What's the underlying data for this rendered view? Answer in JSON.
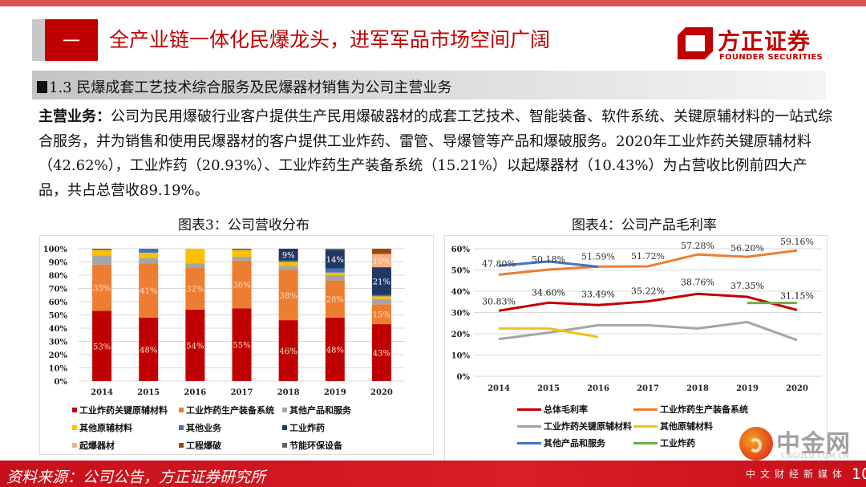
{
  "header": {
    "section_number": "一",
    "title": "全产业链一体化民爆龙头，进军军品市场空间广阔",
    "logo_cn": "方正证券",
    "logo_en": "FOUNDER SECURITIES"
  },
  "section": {
    "heading": "1.3 民爆成套工艺技术综合服务及民爆器材销售为公司主营业务"
  },
  "body": {
    "lead": "主营业务：",
    "text": "公司为民用爆破行业客户提供生产民用爆破器材的成套工艺技术、智能装备、软件系统、关键原辅材料的一站式综合服务，并为销售和使用民爆器材的客户提供工业炸药、雷管、导爆管等产品和爆破服务。2020年工业炸药关键原辅材料（42.62%），工业炸药（20.93%）、工业炸药生产装备系统（15.21%）以起爆器材（10.43%）为占营收比例前四大产品，共占总营收89.19%。"
  },
  "chart_data": [
    {
      "type": "bar",
      "stacked": true,
      "title": "图表3：公司营收分布",
      "categories": [
        "2014",
        "2015",
        "2016",
        "2017",
        "2018",
        "2019",
        "2020"
      ],
      "ylim": [
        0,
        100
      ],
      "yticks": [
        "0%",
        "10%",
        "20%",
        "30%",
        "40%",
        "50%",
        "60%",
        "70%",
        "80%",
        "90%",
        "100%"
      ],
      "legend_position": "bottom",
      "series": [
        {
          "name": "工业炸药关键原辅材料",
          "color": "#c00000",
          "values": [
            53,
            48,
            54,
            55,
            46,
            48,
            43
          ],
          "labels": [
            "53%",
            "48%",
            "54%",
            "55%",
            "46%",
            "48%",
            "43%"
          ]
        },
        {
          "name": "工业炸药生产装备系统",
          "color": "#ed7d31",
          "values": [
            35,
            41,
            32,
            36,
            38,
            28,
            15
          ],
          "labels": [
            "35%",
            "41%",
            "32%",
            "36%",
            "38%",
            "28%",
            "15%"
          ]
        },
        {
          "name": "其他产品和服务",
          "color": "#a5a5a5",
          "values": [
            7,
            4,
            3,
            3,
            3,
            4,
            4
          ],
          "labels": [
            "",
            "",
            "",
            "",
            "",
            "",
            ""
          ]
        },
        {
          "name": "其他原辅材料",
          "color": "#ffc000",
          "values": [
            4,
            4,
            11,
            5,
            3,
            2,
            2
          ],
          "labels": [
            "",
            "",
            "",
            "",
            "",
            "",
            ""
          ]
        },
        {
          "name": "其他业务",
          "color": "#4472c4",
          "values": [
            0,
            3,
            0,
            0,
            1,
            3,
            1
          ],
          "labels": [
            "",
            "",
            "",
            "",
            "",
            "",
            ""
          ]
        },
        {
          "name": "工业炸药",
          "color": "#203864",
          "values": [
            0,
            0,
            0,
            0,
            9,
            14,
            21
          ],
          "labels": [
            "",
            "",
            "",
            "",
            "9%",
            "14%",
            "21%"
          ]
        },
        {
          "name": "起爆器材",
          "color": "#f4b183",
          "values": [
            0,
            0,
            0,
            0,
            0,
            0,
            10
          ],
          "labels": [
            "",
            "",
            "",
            "",
            "",
            "",
            "10%"
          ]
        },
        {
          "name": "工程爆破",
          "color": "#9e480e",
          "values": [
            0,
            0,
            0,
            0,
            0,
            0,
            4
          ],
          "labels": [
            "",
            "",
            "",
            "",
            "",
            "",
            ""
          ]
        },
        {
          "name": "节能环保设备",
          "color": "#636363",
          "values": [
            1,
            0,
            0,
            1,
            0,
            1,
            0
          ],
          "labels": [
            "",
            "",
            "",
            "",
            "",
            "",
            ""
          ]
        }
      ]
    },
    {
      "type": "line",
      "title": "图表4：公司产品毛利率",
      "categories": [
        "2014",
        "2015",
        "2016",
        "2017",
        "2018",
        "2019",
        "2020"
      ],
      "ylim": [
        0,
        60
      ],
      "yticks": [
        "0%",
        "10%",
        "20%",
        "30%",
        "40%",
        "50%",
        "60%"
      ],
      "legend_position": "bottom",
      "series": [
        {
          "name": "总体毛利率",
          "color": "#c00000",
          "values": [
            30.83,
            34.6,
            33.49,
            35.22,
            38.76,
            37.35,
            31.15
          ],
          "labels": [
            "30.83%",
            "34.60%",
            "33.49%",
            "35.22%",
            "38.76%",
            "37.35%",
            "31.15%"
          ]
        },
        {
          "name": "工业炸药生产装备系统",
          "color": "#ed7d31",
          "values": [
            47.8,
            50.18,
            51.59,
            51.72,
            57.28,
            56.2,
            59.16
          ],
          "labels": [
            "47.80%",
            "50.18%",
            "51.59%",
            "51.72%",
            "57.28%",
            "56.20%",
            "59.16%"
          ]
        },
        {
          "name": "工业炸药关键原辅材料",
          "color": "#a5a5a5",
          "values": [
            17.5,
            20.5,
            24,
            24,
            22.5,
            25.5,
            17
          ]
        },
        {
          "name": "其他原辅材料",
          "color": "#f2c314",
          "values": [
            22.5,
            22.5,
            18.5,
            null,
            null,
            null,
            null
          ]
        },
        {
          "name": "其他产品和服务",
          "color": "#4472c4",
          "values": [
            52,
            54,
            51.5,
            null,
            null,
            null,
            null
          ]
        },
        {
          "name": "工业炸药",
          "color": "#70ad47",
          "values": [
            null,
            null,
            null,
            null,
            null,
            34.5,
            34.5
          ]
        }
      ]
    }
  ],
  "footer": {
    "source": "资料来源：公司公告，方正证券研究所",
    "page_number": "10"
  },
  "watermark": {
    "cn": "中金网",
    "en": "CNGOLD.COM.CN",
    "sub": "中文财经新媒体"
  }
}
